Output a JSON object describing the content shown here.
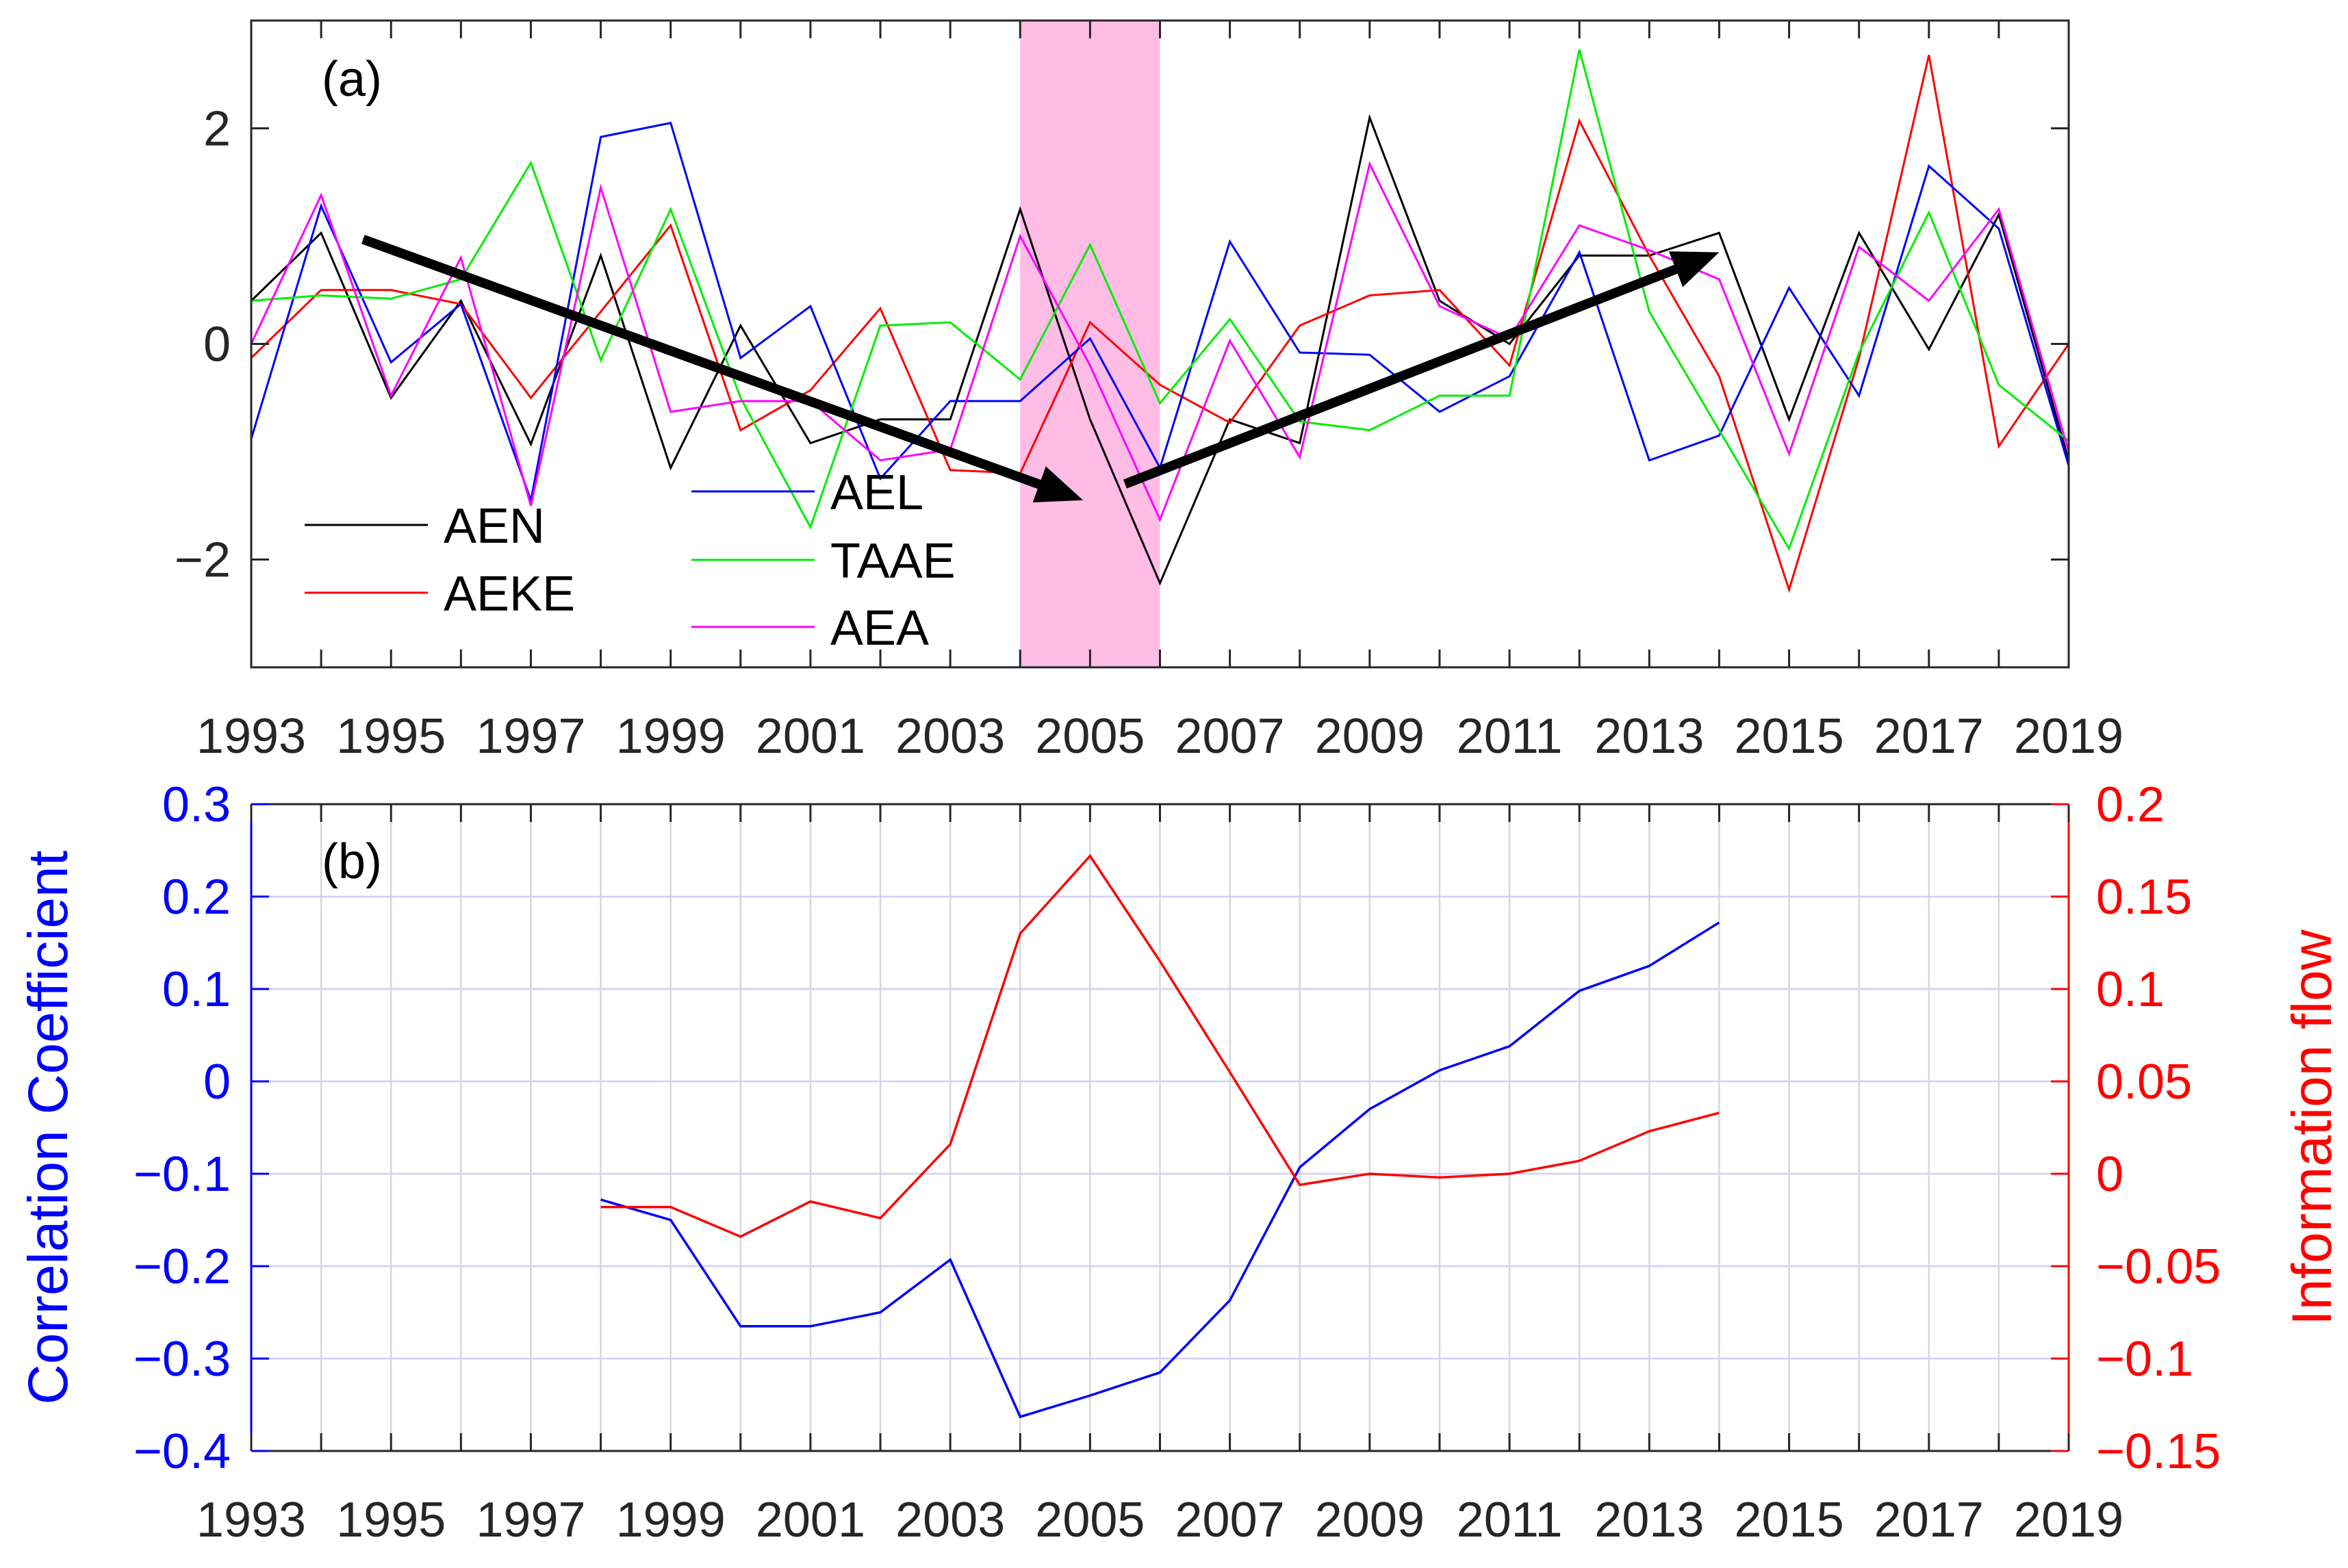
{
  "chart_data": [
    {
      "type": "line",
      "panel_label": "(a)",
      "x": [
        1993,
        1994,
        1995,
        1996,
        1997,
        1998,
        1999,
        2000,
        2001,
        2002,
        2003,
        2004,
        2005,
        2006,
        2007,
        2008,
        2009,
        2010,
        2011,
        2012,
        2013,
        2014,
        2015,
        2016,
        2017,
        2018,
        2019
      ],
      "xlim": [
        1993,
        2019
      ],
      "ylim": [
        -3,
        3
      ],
      "xticks": [
        "1993",
        "1995",
        "1997",
        "1999",
        "2001",
        "2003",
        "2005",
        "2007",
        "2009",
        "2011",
        "2013",
        "2015",
        "2017",
        "2019"
      ],
      "yticks": [
        "−2",
        "0",
        "2"
      ],
      "shaded_span": [
        2004,
        2006
      ],
      "shade_color": "#ffbde6",
      "trend_arrows": [
        {
          "from": [
            1994.6,
            0.97
          ],
          "to": [
            2004.9,
            -1.45
          ]
        },
        {
          "from": [
            2005.5,
            -1.3
          ],
          "to": [
            2014.0,
            0.85
          ]
        }
      ],
      "series": [
        {
          "name": "AEN",
          "color": "#000000",
          "values": [
            0.4,
            1.03,
            -0.5,
            0.4,
            -0.93,
            0.82,
            -1.15,
            0.17,
            -0.92,
            -0.7,
            -0.7,
            1.25,
            -0.7,
            -2.22,
            -0.7,
            -0.92,
            2.1,
            0.4,
            0.0,
            0.82,
            0.82,
            1.03,
            -0.7,
            1.03,
            -0.05,
            1.2,
            -1.08
          ]
        },
        {
          "name": "AEKE",
          "color": "#ff0000",
          "values": [
            -0.13,
            0.5,
            0.5,
            0.37,
            -0.5,
            0.3,
            1.1,
            -0.8,
            -0.43,
            0.33,
            -1.17,
            -1.2,
            0.2,
            -0.38,
            -0.73,
            0.17,
            0.45,
            0.5,
            -0.2,
            2.07,
            0.82,
            -0.3,
            -2.28,
            -0.13,
            2.68,
            -0.95,
            0.0
          ]
        },
        {
          "name": "AEL",
          "color": "#0000ff",
          "values": [
            -0.88,
            1.28,
            -0.17,
            0.37,
            -1.45,
            1.92,
            2.05,
            -0.13,
            0.35,
            -1.25,
            -0.53,
            -0.53,
            0.05,
            -1.15,
            0.95,
            -0.08,
            -0.1,
            -0.63,
            -0.3,
            0.85,
            -1.08,
            -0.85,
            0.52,
            -0.48,
            1.65,
            1.07,
            -1.13
          ]
        },
        {
          "name": "TAAE",
          "color": "#00ee00",
          "values": [
            0.4,
            0.45,
            0.42,
            0.6,
            1.68,
            -0.15,
            1.25,
            -0.5,
            -1.7,
            0.17,
            0.2,
            -0.33,
            0.92,
            -0.55,
            0.23,
            -0.72,
            -0.8,
            -0.48,
            -0.48,
            2.73,
            0.3,
            -0.8,
            -1.9,
            -0.08,
            1.22,
            -0.38,
            -0.9
          ]
        },
        {
          "name": "AEA",
          "color": "#ff00ff",
          "values": [
            0.0,
            1.38,
            -0.48,
            0.8,
            -1.5,
            1.45,
            -0.63,
            -0.53,
            -0.53,
            -1.08,
            -0.98,
            1.0,
            -0.2,
            -1.63,
            0.03,
            -1.05,
            1.67,
            0.35,
            0.05,
            1.1,
            0.87,
            0.6,
            -1.02,
            0.9,
            0.4,
            1.25,
            -1.0
          ]
        }
      ]
    },
    {
      "type": "line",
      "panel_label": "(b)",
      "xlim": [
        1993,
        2019
      ],
      "xticks": [
        "1993",
        "1995",
        "1997",
        "1999",
        "2001",
        "2003",
        "2005",
        "2007",
        "2009",
        "2011",
        "2013",
        "2015",
        "2017",
        "2019"
      ],
      "y_left": {
        "label": "Correlation Coefficient",
        "color": "#0000ff",
        "lim": [
          -0.4,
          0.3
        ],
        "ticks": [
          "−0.4",
          "−0.3",
          "−0.2",
          "−0.1",
          "0",
          "0.1",
          "0.2",
          "0.3"
        ]
      },
      "y_right": {
        "label": "Information flow",
        "color": "#ff0000",
        "lim": [
          -0.15,
          0.2
        ],
        "ticks": [
          "−0.15",
          "−0.1",
          "−0.05",
          "0",
          "0.05",
          "0.1",
          "0.15",
          "0.2"
        ]
      },
      "series": [
        {
          "name": "Correlation Coefficient",
          "axis": "left",
          "color": "#0000ff",
          "x": [
            1998,
            1999,
            2000,
            2001,
            2002,
            2003,
            2004,
            2005,
            2006,
            2007,
            2008,
            2009,
            2010,
            2011,
            2012,
            2013,
            2014
          ],
          "values": [
            -0.128,
            -0.15,
            -0.265,
            -0.265,
            -0.25,
            -0.193,
            -0.363,
            -0.34,
            -0.315,
            -0.237,
            -0.093,
            -0.03,
            0.012,
            0.038,
            0.098,
            0.125,
            0.172
          ]
        },
        {
          "name": "Information flow",
          "axis": "right",
          "color": "#ff0000",
          "x": [
            1998,
            1999,
            2000,
            2001,
            2002,
            2003,
            2004,
            2005,
            2006,
            2007,
            2008,
            2009,
            2010,
            2011,
            2012,
            2013,
            2014
          ],
          "values": [
            -0.018,
            -0.018,
            -0.034,
            -0.015,
            -0.024,
            0.016,
            0.13,
            0.172,
            0.115,
            0.055,
            -0.006,
            0.0,
            -0.002,
            0.0,
            0.007,
            0.023,
            0.033
          ]
        }
      ]
    }
  ]
}
